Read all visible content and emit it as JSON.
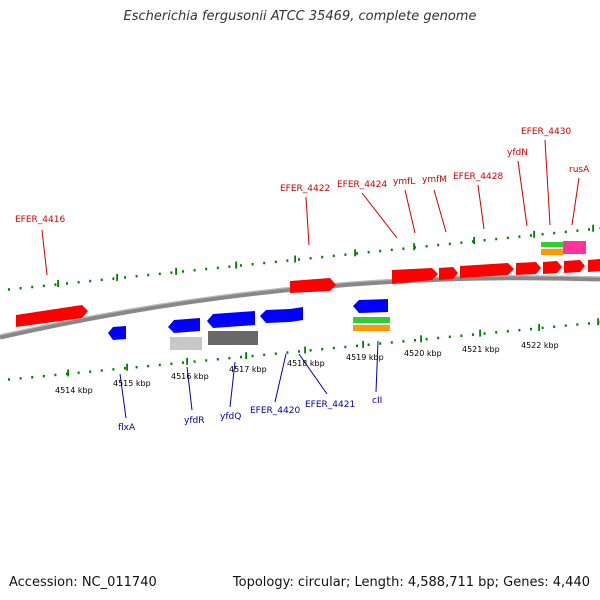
{
  "title": "Escherichia fergusonii ATCC 35469, complete genome",
  "footer": {
    "accession": "Accession: NC_011740",
    "topology": "Topology: circular; Length: 4,588,711 bp; Genes: 4,440"
  },
  "colors": {
    "forward_cds": "#ff0000",
    "reverse_cds": "#0000ff",
    "top_label": "#cc0000",
    "bottom_label": "#0000aa",
    "tick": "#008000",
    "backbone": "#888888",
    "gray_light": "#c8c8c8",
    "gray_dark": "#686868",
    "green": "#33cc33",
    "orange": "#ff9900",
    "magenta": "#ff3399"
  },
  "scale_labels": [
    "4514 kbp",
    "4515 kbp",
    "4516 kbp",
    "4517 kbp",
    "4518 kbp",
    "4519 kbp",
    "4520 kbp",
    "4521 kbp",
    "4522 kbp"
  ],
  "top_labels": [
    "EFER_4416",
    "EFER_4422",
    "EFER_4424",
    "ymfL",
    "ymfM",
    "EFER_4428",
    "yfdN",
    "EFER_4430",
    "rusA"
  ],
  "bottom_labels": [
    "flxA",
    "yfdR",
    "yfdQ",
    "EFER_4420",
    "EFER_4421",
    "cII"
  ]
}
